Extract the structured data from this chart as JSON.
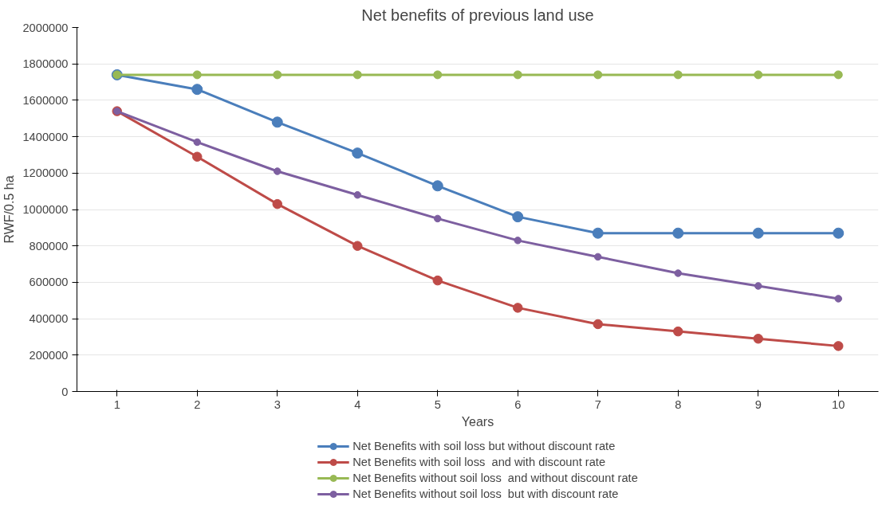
{
  "chart_data": {
    "type": "line",
    "title": "Net benefits of previous land use",
    "xlabel": "Years",
    "ylabel": "RWF/0.5 ha",
    "categories": [
      "1",
      "2",
      "3",
      "4",
      "5",
      "6",
      "7",
      "8",
      "9",
      "10"
    ],
    "ylim": [
      0,
      2000000
    ],
    "yticks": [
      0,
      200000,
      400000,
      600000,
      800000,
      1000000,
      1200000,
      1400000,
      1600000,
      1800000,
      2000000
    ],
    "grid": "y",
    "legend": "bottom",
    "marker": "circle",
    "line_style": "solid",
    "series": [
      {
        "name": "Net Benefits with soil loss but without discount rate",
        "color": "#4a7ebb",
        "values": [
          1740000,
          1660000,
          1480000,
          1310000,
          1130000,
          960000,
          870000,
          870000,
          870000,
          870000
        ]
      },
      {
        "name": "Net Benefits with soil loss  and with discount rate",
        "color": "#be4b48",
        "values": [
          1540000,
          1290000,
          1030000,
          800000,
          610000,
          460000,
          370000,
          330000,
          290000,
          250000
        ]
      },
      {
        "name": "Net Benefits without soil loss  and without discount rate",
        "color": "#98b954",
        "values": [
          1740000,
          1740000,
          1740000,
          1740000,
          1740000,
          1740000,
          1740000,
          1740000,
          1740000,
          1740000
        ]
      },
      {
        "name": "Net Benefits without soil loss  but with discount rate",
        "color": "#7d5fa0",
        "values": [
          1540000,
          1370000,
          1210000,
          1080000,
          950000,
          830000,
          740000,
          650000,
          580000,
          510000
        ]
      }
    ]
  }
}
